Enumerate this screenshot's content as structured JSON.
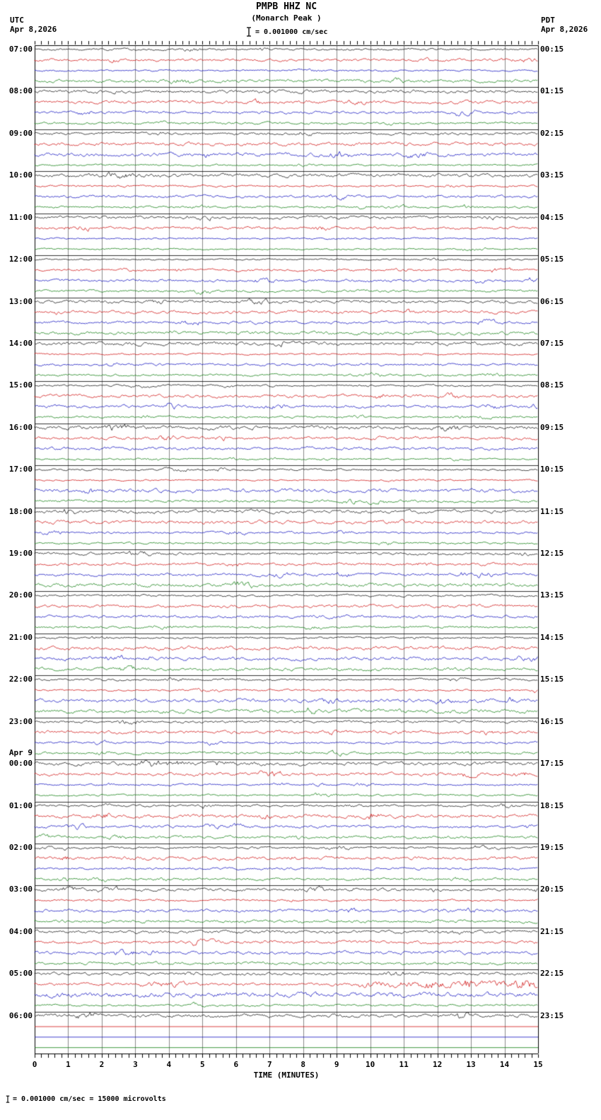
{
  "header": {
    "station_line": "PMPB HHZ NC",
    "location_line": "(Monarch Peak )",
    "utc_label": "UTC",
    "utc_date": "Apr 8,2026",
    "pdt_label": "PDT",
    "pdt_date": "Apr 8,2026",
    "scale_text": "= 0.001000 cm/sec"
  },
  "axis": {
    "title": "TIME (MINUTES)",
    "tick_labels": [
      "0",
      "1",
      "2",
      "3",
      "4",
      "5",
      "6",
      "7",
      "8",
      "9",
      "10",
      "11",
      "12",
      "13",
      "14",
      "15"
    ]
  },
  "footer_note": "= 0.001000 cm/sec =   15000 microvolts",
  "left_labels": [
    {
      "text": "07:00"
    },
    {
      "text": "08:00"
    },
    {
      "text": "09:00"
    },
    {
      "text": "10:00"
    },
    {
      "text": "11:00"
    },
    {
      "text": "12:00"
    },
    {
      "text": "13:00"
    },
    {
      "text": "14:00"
    },
    {
      "text": "15:00"
    },
    {
      "text": "16:00"
    },
    {
      "text": "17:00"
    },
    {
      "text": "18:00"
    },
    {
      "text": "19:00"
    },
    {
      "text": "20:00"
    },
    {
      "text": "21:00"
    },
    {
      "text": "22:00"
    },
    {
      "text": "23:00"
    },
    {
      "text": "00:00",
      "date": "Apr 9"
    },
    {
      "text": "01:00"
    },
    {
      "text": "02:00"
    },
    {
      "text": "03:00"
    },
    {
      "text": "04:00"
    },
    {
      "text": "05:00"
    },
    {
      "text": "06:00"
    }
  ],
  "right_labels": [
    "00:15",
    "01:15",
    "02:15",
    "03:15",
    "04:15",
    "05:15",
    "06:15",
    "07:15",
    "08:15",
    "09:15",
    "10:15",
    "11:15",
    "12:15",
    "13:15",
    "14:15",
    "15:15",
    "16:15",
    "17:15",
    "18:15",
    "19:15",
    "20:15",
    "21:15",
    "22:15",
    "23:15"
  ],
  "chart_data": {
    "type": "line",
    "subtype": "helicorder",
    "title": "PMPB HHZ NC (Monarch Peak )",
    "xlabel": "TIME (MINUTES)",
    "x_range_minutes": [
      0,
      15
    ],
    "minutes_per_trace": 15,
    "traces_per_hour": 4,
    "rows_total": 96,
    "trace_colors": [
      "#000000",
      "#cc0000",
      "#0000bb",
      "#007700"
    ],
    "amplitude_scale": "1 bar = 0.001000 cm/sec = 15000 microvolts",
    "utc_hour_rows": [
      "07:00",
      "08:00",
      "09:00",
      "10:00",
      "11:00",
      "12:00",
      "13:00",
      "14:00",
      "15:00",
      "16:00",
      "17:00",
      "18:00",
      "19:00",
      "20:00",
      "21:00",
      "22:00",
      "23:00",
      "00:00",
      "01:00",
      "02:00",
      "03:00",
      "04:00",
      "05:00",
      "06:00"
    ],
    "signal": "low-amplitude ambient seismic noise on all recorded traces",
    "events": [
      {
        "row": 89,
        "utc_time": "05:15",
        "start_minute": 9.6,
        "end_minute": 15,
        "relative_amplitude": 2.6
      },
      {
        "row": 90,
        "utc_time": "05:30",
        "start_minute": 0,
        "end_minute": 15,
        "relative_amplitude": 2.4
      }
    ],
    "flat_rows": [
      "06:15",
      "06:30",
      "06:45"
    ],
    "noise_seed": 77777
  }
}
